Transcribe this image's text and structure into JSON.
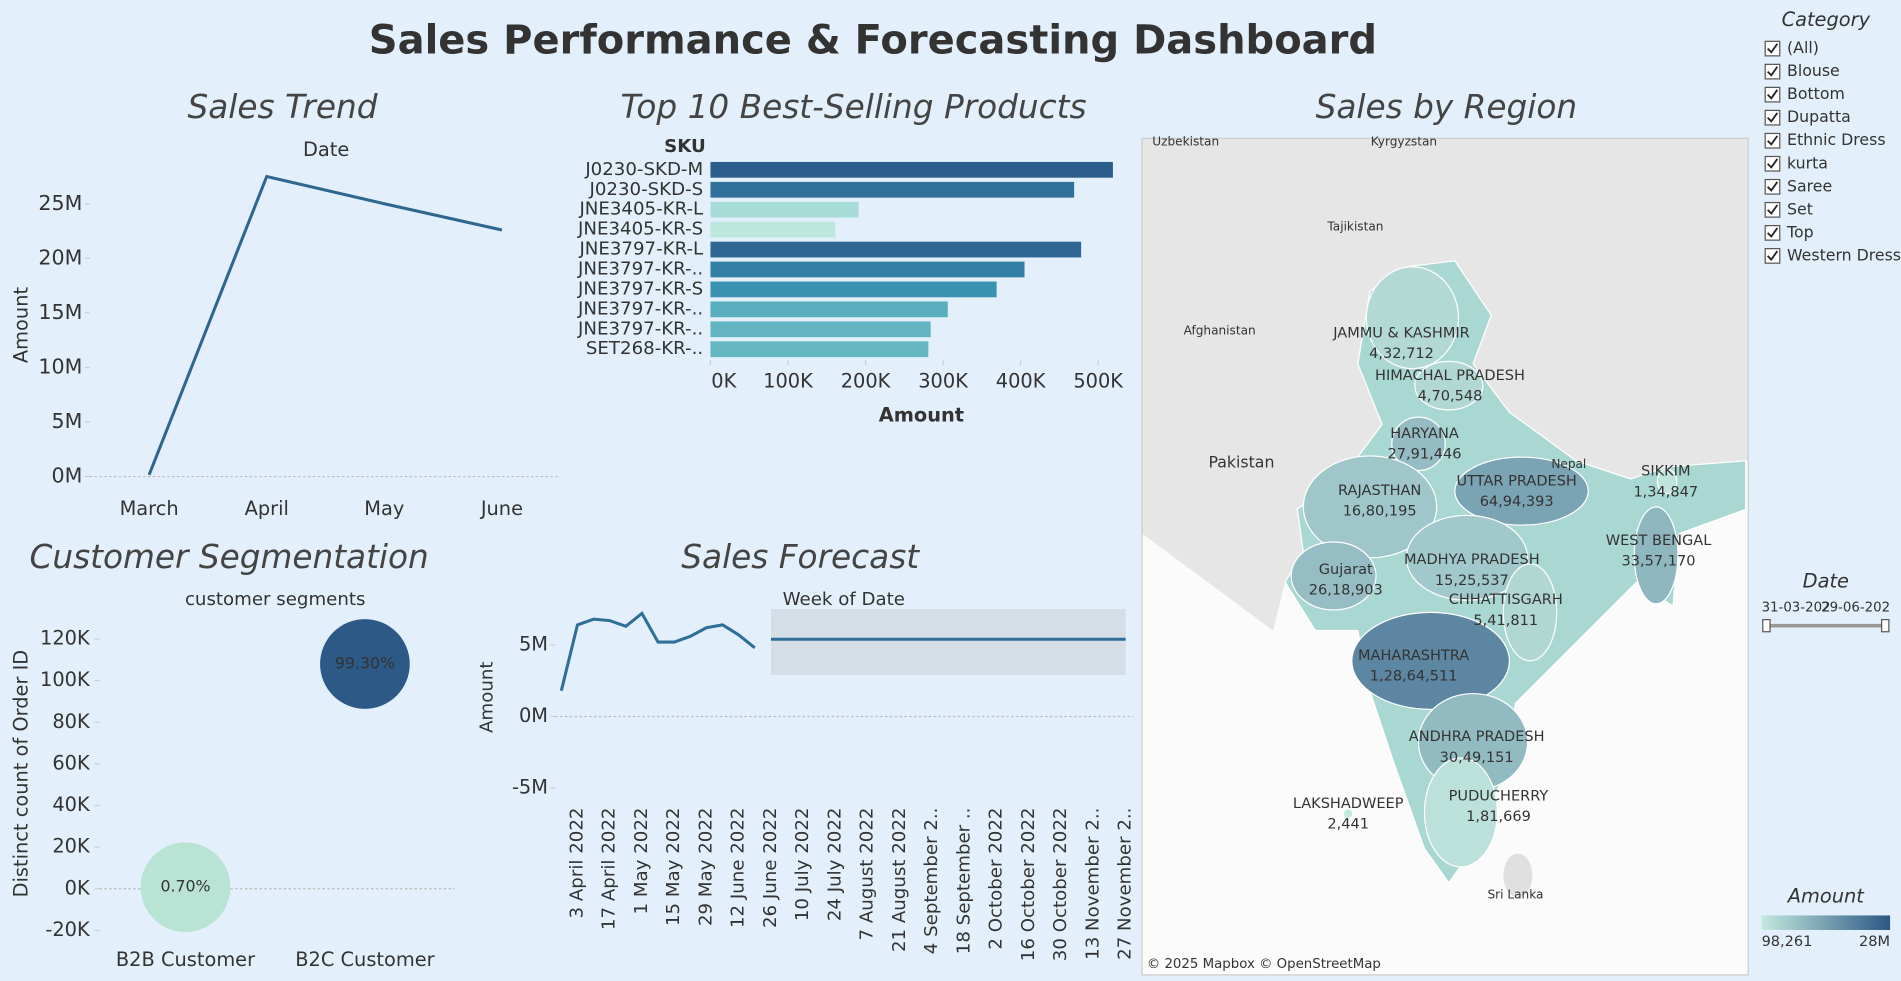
{
  "title": "Sales Performance & Forecasting Dashboard",
  "chart_data": [
    {
      "type": "line",
      "title": "Sales Trend",
      "x_label": "Date",
      "y_label": "Amount",
      "color": "#2f6690",
      "categories": [
        "March",
        "April",
        "May",
        "June"
      ],
      "values": [
        160000,
        27500000,
        25000000,
        22600000
      ],
      "ylim": [
        -1000000,
        30000000
      ],
      "yticks": [
        {
          "value": 0,
          "label": "0M"
        },
        {
          "value": 5000000,
          "label": "5M"
        },
        {
          "value": 10000000,
          "label": "10M"
        },
        {
          "value": 15000000,
          "label": "15M"
        },
        {
          "value": 20000000,
          "label": "20M"
        },
        {
          "value": 25000000,
          "label": "25M"
        }
      ]
    },
    {
      "type": "hbar",
      "title": "Top 10 Best-Selling Products",
      "category_header": "SKU",
      "x_label": "Amount",
      "categories": [
        "J0230-SKD-M",
        "J0230-SKD-S",
        "JNE3405-KR-L",
        "JNE3405-KR-S",
        "JNE3797-KR-L",
        "JNE3797-KR-..",
        "JNE3797-KR-S",
        "JNE3797-KR-..",
        "JNE3797-KR-..",
        "SET268-KR-.."
      ],
      "values": [
        519000,
        469000,
        191000,
        161000,
        478000,
        405000,
        369000,
        306000,
        284000,
        281000
      ],
      "colors": [
        "#2b5e8a",
        "#30709a",
        "#a8dcd7",
        "#bde6dc",
        "#2f6794",
        "#3380a6",
        "#3a91b0",
        "#58aebd",
        "#62b4c0",
        "#64b6c1"
      ],
      "xlim": [
        0,
        530000
      ],
      "xticks": [
        {
          "value": 0,
          "label": "0K"
        },
        {
          "value": 100000,
          "label": "100K"
        },
        {
          "value": 200000,
          "label": "200K"
        },
        {
          "value": 300000,
          "label": "300K"
        },
        {
          "value": 400000,
          "label": "400K"
        },
        {
          "value": 500000,
          "label": "500K"
        }
      ]
    },
    {
      "type": "bubble",
      "title": "Customer Segmentation",
      "x_label": "customer segments",
      "y_label": "Distinct count of Order ID",
      "categories": [
        "B2B Customer",
        "B2C Customer"
      ],
      "values": [
        770,
        108000
      ],
      "labels": [
        "0.70%",
        "99.30%"
      ],
      "colors": [
        "#b9e3d4",
        "#2c5985"
      ],
      "ylim": [
        -26200,
        129900
      ],
      "yticks": [
        {
          "value": -20000,
          "label": "-20K"
        },
        {
          "value": 0,
          "label": "0K"
        },
        {
          "value": 20000,
          "label": "20K"
        },
        {
          "value": 40000,
          "label": "40K"
        },
        {
          "value": 60000,
          "label": "60K"
        },
        {
          "value": 80000,
          "label": "80K"
        },
        {
          "value": 100000,
          "label": "100K"
        },
        {
          "value": 120000,
          "label": "120K"
        }
      ]
    },
    {
      "type": "forecast",
      "title": "Sales Forecast",
      "x_label": "Week of Date",
      "y_label": "Amount",
      "color": "#2f6e96",
      "band_color": "#d5dee7",
      "categories": [
        null,
        "3 April 2022",
        null,
        "17 April 2022",
        null,
        "1 May 2022",
        null,
        "15 May 2022",
        null,
        "29 May 2022",
        null,
        "12 June 2022",
        null,
        "26 June 2022",
        null,
        "10 July 2022",
        null,
        "24 July 2022",
        null,
        "7 August 2022",
        null,
        "21 August 2022",
        null,
        "4 September 2..",
        null,
        "18 September ..",
        null,
        "2 October 2022",
        null,
        "16 October 2022",
        null,
        "30 October 2022",
        null,
        "13 November 2..",
        null,
        "27 November 2.."
      ],
      "values": [
        1800000,
        6400000,
        6800000,
        6700000,
        6300000,
        7200000,
        5200000,
        5200000,
        5600000,
        6200000,
        6400000,
        5700000,
        4800000,
        null,
        null,
        null,
        null,
        null,
        null,
        null,
        null,
        null,
        null,
        null,
        null,
        null,
        null,
        null,
        null,
        null,
        null,
        null,
        null,
        null,
        null,
        null
      ],
      "forecast": [
        null,
        null,
        null,
        null,
        null,
        null,
        null,
        null,
        null,
        null,
        null,
        null,
        null,
        5400000,
        5400000,
        5400000,
        5400000,
        5400000,
        5400000,
        5400000,
        5400000,
        5400000,
        5400000,
        5400000,
        5400000,
        5400000,
        5400000,
        5400000,
        5400000,
        5400000,
        5400000,
        5400000,
        5400000,
        5400000,
        5400000,
        5400000
      ],
      "forecast_lower": [
        null,
        null,
        null,
        null,
        null,
        null,
        null,
        null,
        null,
        null,
        null,
        null,
        null,
        2900000,
        2900000,
        2900000,
        2900000,
        2900000,
        2900000,
        2900000,
        2900000,
        2900000,
        2900000,
        2900000,
        2900000,
        2900000,
        2900000,
        2900000,
        2900000,
        2900000,
        2900000,
        2900000,
        2900000,
        2900000,
        2900000,
        2900000
      ],
      "forecast_upper": [
        null,
        null,
        null,
        null,
        null,
        null,
        null,
        null,
        null,
        null,
        null,
        null,
        null,
        7500000,
        7500000,
        7500000,
        7500000,
        7500000,
        7500000,
        7500000,
        7500000,
        7500000,
        7500000,
        7500000,
        7500000,
        7500000,
        7500000,
        7500000,
        7500000,
        7500000,
        7500000,
        7500000,
        7500000,
        7500000,
        7500000,
        7500000
      ],
      "ylim": [
        -5850000,
        7700000
      ],
      "yticks": [
        {
          "value": -5000000,
          "label": "-5M"
        },
        {
          "value": 0,
          "label": "0M"
        },
        {
          "value": 5000000,
          "label": "5M"
        }
      ]
    },
    {
      "type": "map",
      "title": "Sales by Region",
      "regions": [
        "JAMMU & KASHMIR",
        "HIMACHAL PRADESH",
        "HARYANA",
        "RAJASTHAN",
        "UTTAR PRADESH",
        "SIKKIM",
        "WEST BENGAL",
        "Gujarat",
        "MADHYA PRADESH",
        "CHHATTISGARH",
        "MAHARASHTRA",
        "ANDHRA PRADESH",
        "PUDUCHERRY",
        "LAKSHADWEEP"
      ],
      "values": [
        432712,
        470548,
        2791446,
        1680195,
        6494393,
        134847,
        3357170,
        2618903,
        1525537,
        541811,
        12864511,
        3049151,
        181669,
        2441
      ],
      "value_labels": [
        "4,32,712",
        "4,70,548",
        "27,91,446",
        "16,80,195",
        "64,94,393",
        "1,34,847",
        "33,57,170",
        "26,18,903",
        "15,25,537",
        "5,41,811",
        "1,28,64,511",
        "30,49,151",
        "1,81,669",
        "2,441"
      ],
      "place_labels": [
        "Uzbekistan",
        "Kyrgyzstan",
        "Tajikistan",
        "Afghanistan",
        "Pakistan",
        "Nepal",
        "Sri Lanka"
      ],
      "attribution": "© 2025 Mapbox © OpenStreetMap"
    }
  ],
  "filters": {
    "category": {
      "title": "Category",
      "items": [
        "(All)",
        "Blouse",
        "Bottom",
        "Dupatta",
        "Ethnic Dress",
        "kurta",
        "Saree",
        "Set",
        "Top",
        "Western Dress"
      ],
      "checked": [
        true,
        true,
        true,
        true,
        true,
        true,
        true,
        true,
        true,
        true
      ]
    },
    "date": {
      "title": "Date",
      "start": "31-03-202",
      "end": "29-06-202"
    },
    "amount_legend": {
      "title": "Amount",
      "min": {
        "value": 98261,
        "label": "98,261"
      },
      "max": {
        "value": 28000000,
        "label": "28M"
      },
      "colors": [
        "#c4e9df",
        "#2a5783"
      ]
    }
  }
}
